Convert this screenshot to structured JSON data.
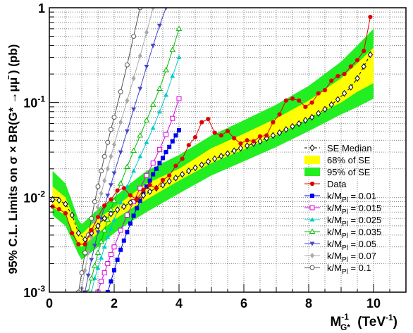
{
  "chart_data": {
    "type": "line",
    "title": "",
    "xlabel": "M",
    "xlabel_sub": "G*",
    "xlabel_sup": "-1",
    "xlabel_units": "(TeV",
    "xlabel_units_sup": "-1",
    "xlabel_close": ")",
    "ylabel": "95% C.L. Limits on σ × BR(G* →μμ̄ ) (pb)",
    "xlim": [
      0,
      11
    ],
    "ylim": [
      0.001,
      1
    ],
    "yscale": "log",
    "grid": true,
    "legend_position": "bottom-right",
    "x_ticks": [
      "0",
      "2",
      "4",
      "6",
      "8",
      "10"
    ],
    "y_ticks": [
      {
        "base": "10",
        "exp": "-3",
        "value": 0.001
      },
      {
        "base": "10",
        "exp": "-2",
        "value": 0.01
      },
      {
        "base": "10",
        "exp": "-1",
        "value": 0.1
      },
      {
        "base": "1",
        "exp": "",
        "value": 1
      }
    ],
    "bands": [
      {
        "name": "95% of SE",
        "color": "#22ee22",
        "x": [
          0.1,
          0.5,
          0.9,
          1.0,
          1.5,
          2.0,
          2.5,
          3.0,
          4.0,
          5.0,
          6.0,
          7.0,
          8.0,
          9.0,
          9.5,
          10.0
        ],
        "lower": [
          0.0065,
          0.005,
          0.0025,
          0.0022,
          0.003,
          0.0042,
          0.0055,
          0.007,
          0.011,
          0.017,
          0.024,
          0.034,
          0.05,
          0.075,
          0.09,
          0.11
        ],
        "upper": [
          0.019,
          0.014,
          0.0058,
          0.0052,
          0.0075,
          0.01,
          0.014,
          0.019,
          0.028,
          0.045,
          0.065,
          0.095,
          0.15,
          0.27,
          0.4,
          0.6
        ]
      },
      {
        "name": "68% of SE",
        "color": "#ffff00",
        "x": [
          0.1,
          0.5,
          0.9,
          1.0,
          1.5,
          2.0,
          2.5,
          3.0,
          4.0,
          5.0,
          6.0,
          7.0,
          8.0,
          9.0,
          9.5,
          10.0
        ],
        "lower": [
          0.0078,
          0.0065,
          0.0032,
          0.003,
          0.0042,
          0.0058,
          0.0075,
          0.0095,
          0.015,
          0.023,
          0.032,
          0.045,
          0.068,
          0.1,
          0.13,
          0.16
        ],
        "upper": [
          0.013,
          0.01,
          0.0045,
          0.0041,
          0.006,
          0.0078,
          0.0105,
          0.014,
          0.02,
          0.033,
          0.047,
          0.068,
          0.105,
          0.18,
          0.26,
          0.38
        ]
      }
    ],
    "series": [
      {
        "name": "SE Median",
        "color": "#000000",
        "style": "dashed",
        "marker": "diamond-open",
        "x": [
          0.1,
          0.3,
          0.5,
          0.7,
          0.9,
          1.1,
          1.3,
          1.5,
          1.7,
          1.9,
          2.1,
          2.3,
          2.5,
          2.7,
          2.9,
          3.1,
          3.3,
          3.5,
          3.7,
          3.9,
          4.1,
          4.3,
          4.5,
          4.7,
          4.9,
          5.1,
          5.3,
          5.5,
          5.7,
          5.9,
          6.1,
          6.3,
          6.5,
          6.7,
          6.9,
          7.1,
          7.3,
          7.5,
          7.7,
          7.9,
          8.1,
          8.3,
          8.5,
          8.7,
          8.9,
          9.1,
          9.3,
          9.5,
          9.7,
          9.9
        ],
        "values": [
          0.0095,
          0.0093,
          0.0085,
          0.0065,
          0.0042,
          0.0036,
          0.0042,
          0.005,
          0.006,
          0.0067,
          0.0074,
          0.008,
          0.0088,
          0.0095,
          0.0105,
          0.0115,
          0.0125,
          0.0135,
          0.0148,
          0.016,
          0.0175,
          0.019,
          0.0205,
          0.022,
          0.0238,
          0.0255,
          0.0272,
          0.029,
          0.031,
          0.033,
          0.035,
          0.037,
          0.039,
          0.042,
          0.045,
          0.048,
          0.052,
          0.056,
          0.06,
          0.065,
          0.07,
          0.077,
          0.085,
          0.095,
          0.108,
          0.125,
          0.145,
          0.18,
          0.24,
          0.32
        ]
      },
      {
        "name": "Data",
        "color": "#dd0000",
        "style": "solid",
        "marker": "circle-filled",
        "x": [
          0.1,
          0.3,
          0.5,
          0.7,
          0.9,
          1.1,
          1.3,
          1.5,
          1.7,
          1.9,
          2.1,
          2.3,
          2.5,
          2.7,
          2.9,
          3.1,
          3.3,
          3.5,
          3.7,
          3.9,
          4.1,
          4.3,
          4.5,
          4.7,
          4.9,
          5.1,
          5.3,
          5.5,
          5.7,
          5.9,
          6.1,
          6.3,
          6.5,
          6.7,
          6.9,
          7.1,
          7.3,
          7.5,
          7.7,
          7.9,
          8.1,
          8.3,
          8.5,
          8.7,
          8.9,
          9.1,
          9.3,
          9.5,
          9.7,
          9.9
        ],
        "values": [
          0.008,
          0.0075,
          0.0068,
          0.0042,
          0.0032,
          0.0032,
          0.0045,
          0.0062,
          0.0082,
          0.0095,
          0.0118,
          0.0125,
          0.0105,
          0.0095,
          0.012,
          0.0135,
          0.0125,
          0.0152,
          0.017,
          0.0215,
          0.0255,
          0.0355,
          0.043,
          0.062,
          0.067,
          0.048,
          0.045,
          0.05,
          0.042,
          0.037,
          0.04,
          0.039,
          0.044,
          0.045,
          0.062,
          0.075,
          0.105,
          0.11,
          0.105,
          0.09,
          0.1,
          0.125,
          0.135,
          0.17,
          0.19,
          0.2,
          0.24,
          0.28,
          0.35,
          0.8
        ]
      },
      {
        "name": "k/M_Pl = 0.01",
        "label_main": "k/M",
        "label_sub": "Pl",
        "label_val": " = 0.01",
        "color": "#0000ee",
        "style": "solid",
        "marker": "square-filled",
        "x": [
          1.8,
          1.9,
          2.0,
          2.1,
          2.2,
          2.3,
          2.4,
          2.5,
          2.6,
          2.7,
          2.8,
          2.9,
          3.0,
          3.1,
          3.2,
          3.3,
          3.4,
          3.5,
          3.6,
          3.7,
          3.8,
          3.9,
          4.0
        ],
        "values": [
          0.001,
          0.0013,
          0.0017,
          0.0022,
          0.0028,
          0.0035,
          0.0043,
          0.0053,
          0.0064,
          0.0077,
          0.0092,
          0.011,
          0.013,
          0.015,
          0.0175,
          0.02,
          0.023,
          0.026,
          0.03,
          0.034,
          0.039,
          0.045,
          0.051
        ]
      },
      {
        "name": "k/M_Pl = 0.015",
        "label_main": "k/M",
        "label_sub": "Pl",
        "label_val": " = 0.015",
        "color": "#dd00dd",
        "style": "solid",
        "marker": "square-open",
        "x": [
          1.5,
          1.6,
          1.7,
          1.8,
          1.9,
          2.0,
          2.2,
          2.4,
          2.6,
          2.8,
          3.0,
          3.2,
          3.4,
          3.6,
          3.8,
          4.0
        ],
        "values": [
          0.001,
          0.0013,
          0.0016,
          0.002,
          0.0025,
          0.003,
          0.0045,
          0.0065,
          0.009,
          0.0125,
          0.017,
          0.023,
          0.032,
          0.046,
          0.068,
          0.11
        ]
      },
      {
        "name": "k/M_Pl = 0.025",
        "label_main": "k/M",
        "label_sub": "Pl",
        "label_val": " = 0.025",
        "color": "#00cccc",
        "style": "solid",
        "marker": "triangle-filled",
        "x": [
          1.3,
          1.4,
          1.5,
          1.6,
          1.7,
          1.8,
          1.9,
          2.0,
          2.2,
          2.4,
          2.6,
          2.8,
          3.0,
          3.2,
          3.4,
          3.6,
          3.8,
          4.0
        ],
        "values": [
          0.001,
          0.0014,
          0.0018,
          0.0023,
          0.003,
          0.0038,
          0.0047,
          0.0058,
          0.0088,
          0.013,
          0.019,
          0.027,
          0.038,
          0.054,
          0.08,
          0.12,
          0.19,
          0.3
        ]
      },
      {
        "name": "k/M_Pl = 0.035",
        "label_main": "k/M",
        "label_sub": "Pl",
        "label_val": " = 0.035",
        "color": "#00bb00",
        "style": "solid",
        "marker": "triangle-open",
        "x": [
          1.2,
          1.3,
          1.4,
          1.5,
          1.6,
          1.7,
          1.8,
          1.9,
          2.0,
          2.2,
          2.4,
          2.6,
          2.8,
          3.0,
          3.2,
          3.4,
          3.6,
          3.8,
          4.0
        ],
        "values": [
          0.001,
          0.0014,
          0.0019,
          0.0026,
          0.0034,
          0.0045,
          0.0058,
          0.0074,
          0.0092,
          0.014,
          0.021,
          0.031,
          0.045,
          0.065,
          0.095,
          0.14,
          0.22,
          0.36,
          0.6
        ]
      },
      {
        "name": "k/M_Pl = 0.05",
        "label_main": "k/M",
        "label_sub": "Pl",
        "label_val": " = 0.05",
        "color": "#4444cc",
        "style": "solid",
        "marker": "triangle-down",
        "x": [
          1.1,
          1.2,
          1.3,
          1.4,
          1.5,
          1.6,
          1.7,
          1.8,
          1.9,
          2.0,
          2.2,
          2.4,
          2.6,
          2.8,
          3.0,
          3.2,
          3.4,
          3.6
        ],
        "values": [
          0.001,
          0.0015,
          0.0022,
          0.0031,
          0.0043,
          0.006,
          0.008,
          0.0105,
          0.0135,
          0.018,
          0.03,
          0.05,
          0.085,
          0.14,
          0.24,
          0.4,
          0.65,
          1.0
        ]
      },
      {
        "name": "k/M_Pl = 0.07",
        "label_main": "k/M",
        "label_sub": "Pl",
        "label_val": " = 0.07",
        "color": "#aaaaaa",
        "style": "solid",
        "marker": "diamond-filled",
        "x": [
          1.0,
          1.1,
          1.2,
          1.3,
          1.4,
          1.5,
          1.6,
          1.7,
          1.8,
          1.9,
          2.0,
          2.2,
          2.4,
          2.6,
          2.8,
          3.0,
          3.2
        ],
        "values": [
          0.0011,
          0.0017,
          0.0026,
          0.0038,
          0.0055,
          0.0078,
          0.011,
          0.015,
          0.02,
          0.027,
          0.036,
          0.062,
          0.105,
          0.18,
          0.31,
          0.55,
          1.0
        ]
      },
      {
        "name": "k/M_Pl = 0.1",
        "label_main": "k/M",
        "label_sub": "Pl",
        "label_val": " = 0.1",
        "color": "#555555",
        "style": "solid",
        "marker": "circle-open",
        "x": [
          0.9,
          1.0,
          1.1,
          1.2,
          1.3,
          1.4,
          1.5,
          1.6,
          1.7,
          1.8,
          1.9,
          2.0,
          2.2,
          2.4,
          2.6,
          2.8
        ],
        "values": [
          0.001,
          0.0016,
          0.0026,
          0.004,
          0.006,
          0.009,
          0.013,
          0.019,
          0.027,
          0.038,
          0.052,
          0.07,
          0.13,
          0.25,
          0.5,
          1.0
        ]
      }
    ],
    "legend": {
      "bands": [
        {
          "label": "68% of SE",
          "color": "#ffff00"
        },
        {
          "label": "95% of SE",
          "color": "#22ee22"
        }
      ]
    }
  }
}
